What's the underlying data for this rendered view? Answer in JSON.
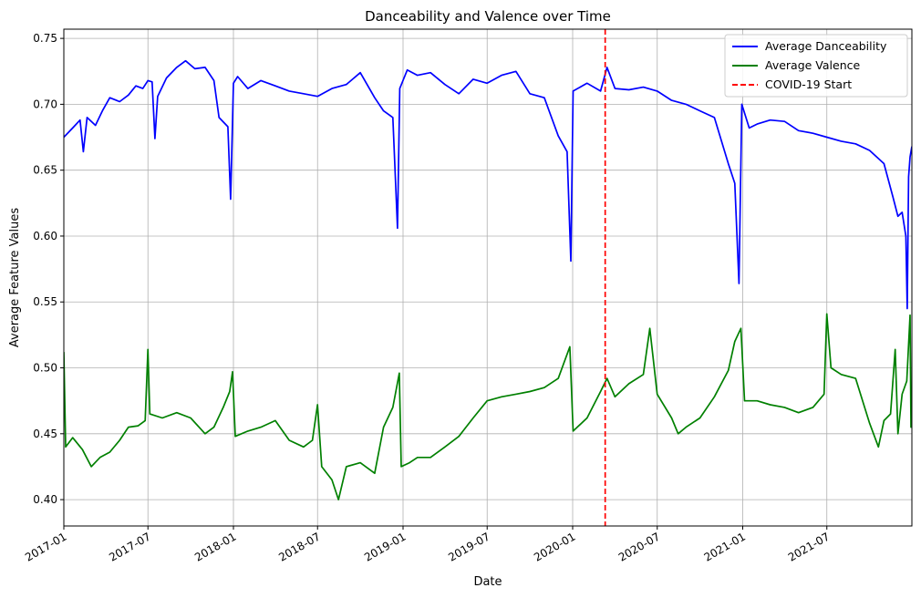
{
  "chart_data": {
    "type": "line",
    "title": "Danceability and Valence over Time",
    "xlabel": "Date",
    "ylabel": "Average Feature Values",
    "xlim": [
      "2017-01-01",
      "2021-12-31"
    ],
    "ylim": [
      0.38,
      0.757
    ],
    "yticks": [
      0.4,
      0.45,
      0.5,
      0.55,
      0.6,
      0.65,
      0.7,
      0.75
    ],
    "ytick_labels": [
      "0.40",
      "0.45",
      "0.50",
      "0.55",
      "0.60",
      "0.65",
      "0.70",
      "0.75"
    ],
    "xticks": [
      "2017-01-01",
      "2017-07-01",
      "2018-01-01",
      "2018-07-01",
      "2019-01-01",
      "2019-07-01",
      "2020-01-01",
      "2020-07-01",
      "2021-01-01",
      "2021-07-01"
    ],
    "xtick_labels": [
      "2017-01",
      "2017-07",
      "2018-01",
      "2018-07",
      "2019-01",
      "2019-07",
      "2020-01",
      "2020-07",
      "2021-01",
      "2021-07"
    ],
    "grid": true,
    "legend_position": "top-right",
    "colors": {
      "danceability": "#0000ff",
      "valence": "#008000",
      "covid": "#ff0000"
    },
    "series": [
      {
        "name": "Average Danceability",
        "color": "#0000ff",
        "points": [
          [
            "2017-01-01",
            0.675
          ],
          [
            "2017-01-20",
            0.682
          ],
          [
            "2017-02-05",
            0.688
          ],
          [
            "2017-02-12",
            0.664
          ],
          [
            "2017-02-20",
            0.69
          ],
          [
            "2017-03-10",
            0.684
          ],
          [
            "2017-03-25",
            0.695
          ],
          [
            "2017-04-10",
            0.705
          ],
          [
            "2017-05-01",
            0.702
          ],
          [
            "2017-05-20",
            0.707
          ],
          [
            "2017-06-05",
            0.714
          ],
          [
            "2017-06-20",
            0.712
          ],
          [
            "2017-07-01",
            0.718
          ],
          [
            "2017-07-10",
            0.717
          ],
          [
            "2017-07-16",
            0.674
          ],
          [
            "2017-07-22",
            0.706
          ],
          [
            "2017-08-10",
            0.72
          ],
          [
            "2017-09-01",
            0.728
          ],
          [
            "2017-09-20",
            0.733
          ],
          [
            "2017-10-10",
            0.727
          ],
          [
            "2017-11-01",
            0.728
          ],
          [
            "2017-11-20",
            0.718
          ],
          [
            "2017-12-01",
            0.69
          ],
          [
            "2017-12-20",
            0.683
          ],
          [
            "2017-12-26",
            0.628
          ],
          [
            "2018-01-01",
            0.716
          ],
          [
            "2018-01-10",
            0.721
          ],
          [
            "2018-02-01",
            0.712
          ],
          [
            "2018-03-01",
            0.718
          ],
          [
            "2018-04-01",
            0.714
          ],
          [
            "2018-05-01",
            0.71
          ],
          [
            "2018-06-01",
            0.708
          ],
          [
            "2018-07-01",
            0.706
          ],
          [
            "2018-08-01",
            0.712
          ],
          [
            "2018-09-01",
            0.715
          ],
          [
            "2018-10-01",
            0.724
          ],
          [
            "2018-11-01",
            0.705
          ],
          [
            "2018-11-20",
            0.695
          ],
          [
            "2018-12-10",
            0.69
          ],
          [
            "2018-12-20",
            0.606
          ],
          [
            "2018-12-25",
            0.712
          ],
          [
            "2019-01-10",
            0.726
          ],
          [
            "2019-02-01",
            0.722
          ],
          [
            "2019-03-01",
            0.724
          ],
          [
            "2019-04-01",
            0.715
          ],
          [
            "2019-05-01",
            0.708
          ],
          [
            "2019-06-01",
            0.719
          ],
          [
            "2019-07-01",
            0.716
          ],
          [
            "2019-08-01",
            0.722
          ],
          [
            "2019-09-01",
            0.725
          ],
          [
            "2019-10-01",
            0.708
          ],
          [
            "2019-11-01",
            0.705
          ],
          [
            "2019-12-01",
            0.676
          ],
          [
            "2019-12-20",
            0.664
          ],
          [
            "2019-12-28",
            0.581
          ],
          [
            "2020-01-02",
            0.71
          ],
          [
            "2020-02-01",
            0.716
          ],
          [
            "2020-03-01",
            0.71
          ],
          [
            "2020-03-15",
            0.728
          ],
          [
            "2020-04-01",
            0.712
          ],
          [
            "2020-05-01",
            0.711
          ],
          [
            "2020-06-01",
            0.713
          ],
          [
            "2020-07-01",
            0.71
          ],
          [
            "2020-08-01",
            0.703
          ],
          [
            "2020-09-01",
            0.7
          ],
          [
            "2020-10-01",
            0.695
          ],
          [
            "2020-11-01",
            0.69
          ],
          [
            "2020-12-01",
            0.655
          ],
          [
            "2020-12-15",
            0.64
          ],
          [
            "2020-12-24",
            0.564
          ],
          [
            "2020-12-30",
            0.7
          ],
          [
            "2021-01-15",
            0.682
          ],
          [
            "2021-02-01",
            0.685
          ],
          [
            "2021-03-01",
            0.688
          ],
          [
            "2021-04-01",
            0.687
          ],
          [
            "2021-05-01",
            0.68
          ],
          [
            "2021-06-01",
            0.678
          ],
          [
            "2021-07-01",
            0.675
          ],
          [
            "2021-08-01",
            0.672
          ],
          [
            "2021-09-01",
            0.67
          ],
          [
            "2021-10-01",
            0.665
          ],
          [
            "2021-11-01",
            0.655
          ],
          [
            "2021-11-20",
            0.63
          ],
          [
            "2021-12-01",
            0.615
          ],
          [
            "2021-12-10",
            0.618
          ],
          [
            "2021-12-18",
            0.6
          ],
          [
            "2021-12-21",
            0.545
          ],
          [
            "2021-12-24",
            0.645
          ],
          [
            "2021-12-27",
            0.66
          ],
          [
            "2021-12-31",
            0.668
          ]
        ]
      },
      {
        "name": "Average Valence",
        "color": "#008000",
        "points": [
          [
            "2017-01-01",
            0.512
          ],
          [
            "2017-01-05",
            0.44
          ],
          [
            "2017-01-20",
            0.447
          ],
          [
            "2017-02-10",
            0.438
          ],
          [
            "2017-03-01",
            0.425
          ],
          [
            "2017-03-20",
            0.432
          ],
          [
            "2017-04-10",
            0.436
          ],
          [
            "2017-05-01",
            0.445
          ],
          [
            "2017-05-20",
            0.455
          ],
          [
            "2017-06-10",
            0.456
          ],
          [
            "2017-06-25",
            0.46
          ],
          [
            "2017-07-01",
            0.514
          ],
          [
            "2017-07-05",
            0.465
          ],
          [
            "2017-08-01",
            0.462
          ],
          [
            "2017-09-01",
            0.466
          ],
          [
            "2017-10-01",
            0.462
          ],
          [
            "2017-11-01",
            0.45
          ],
          [
            "2017-11-20",
            0.455
          ],
          [
            "2017-12-10",
            0.47
          ],
          [
            "2017-12-24",
            0.482
          ],
          [
            "2017-12-30",
            0.497
          ],
          [
            "2018-01-05",
            0.448
          ],
          [
            "2018-02-01",
            0.452
          ],
          [
            "2018-03-01",
            0.455
          ],
          [
            "2018-04-01",
            0.46
          ],
          [
            "2018-05-01",
            0.445
          ],
          [
            "2018-06-01",
            0.44
          ],
          [
            "2018-06-20",
            0.445
          ],
          [
            "2018-07-01",
            0.472
          ],
          [
            "2018-07-10",
            0.425
          ],
          [
            "2018-08-01",
            0.415
          ],
          [
            "2018-08-15",
            0.4
          ],
          [
            "2018-09-01",
            0.425
          ],
          [
            "2018-10-01",
            0.428
          ],
          [
            "2018-11-01",
            0.42
          ],
          [
            "2018-11-20",
            0.455
          ],
          [
            "2018-12-10",
            0.47
          ],
          [
            "2018-12-24",
            0.496
          ],
          [
            "2018-12-28",
            0.425
          ],
          [
            "2019-01-15",
            0.428
          ],
          [
            "2019-02-01",
            0.432
          ],
          [
            "2019-03-01",
            0.432
          ],
          [
            "2019-04-01",
            0.44
          ],
          [
            "2019-05-01",
            0.448
          ],
          [
            "2019-06-01",
            0.462
          ],
          [
            "2019-07-01",
            0.475
          ],
          [
            "2019-08-01",
            0.478
          ],
          [
            "2019-09-01",
            0.48
          ],
          [
            "2019-10-01",
            0.482
          ],
          [
            "2019-11-01",
            0.485
          ],
          [
            "2019-12-01",
            0.492
          ],
          [
            "2019-12-26",
            0.516
          ],
          [
            "2020-01-02",
            0.452
          ],
          [
            "2020-02-01",
            0.462
          ],
          [
            "2020-03-01",
            0.482
          ],
          [
            "2020-03-15",
            0.492
          ],
          [
            "2020-04-01",
            0.478
          ],
          [
            "2020-05-01",
            0.488
          ],
          [
            "2020-06-01",
            0.495
          ],
          [
            "2020-06-15",
            0.53
          ],
          [
            "2020-07-01",
            0.48
          ],
          [
            "2020-08-01",
            0.462
          ],
          [
            "2020-08-15",
            0.45
          ],
          [
            "2020-09-01",
            0.455
          ],
          [
            "2020-10-01",
            0.462
          ],
          [
            "2020-11-01",
            0.478
          ],
          [
            "2020-12-01",
            0.498
          ],
          [
            "2020-12-15",
            0.52
          ],
          [
            "2020-12-28",
            0.53
          ],
          [
            "2021-01-05",
            0.475
          ],
          [
            "2021-02-01",
            0.475
          ],
          [
            "2021-03-01",
            0.472
          ],
          [
            "2021-04-01",
            0.47
          ],
          [
            "2021-05-01",
            0.466
          ],
          [
            "2021-06-01",
            0.47
          ],
          [
            "2021-06-25",
            0.48
          ],
          [
            "2021-07-01",
            0.541
          ],
          [
            "2021-07-10",
            0.5
          ],
          [
            "2021-08-01",
            0.495
          ],
          [
            "2021-09-01",
            0.492
          ],
          [
            "2021-10-01",
            0.458
          ],
          [
            "2021-10-20",
            0.44
          ],
          [
            "2021-11-01",
            0.46
          ],
          [
            "2021-11-15",
            0.465
          ],
          [
            "2021-11-25",
            0.514
          ],
          [
            "2021-12-01",
            0.45
          ],
          [
            "2021-12-10",
            0.48
          ],
          [
            "2021-12-20",
            0.49
          ],
          [
            "2021-12-27",
            0.54
          ],
          [
            "2021-12-29",
            0.455
          ],
          [
            "2021-12-31",
            0.462
          ]
        ]
      },
      {
        "name": "COVID-19 Start",
        "color": "#ff0000",
        "style": "dashed",
        "vline_x": "2020-03-11"
      }
    ]
  }
}
